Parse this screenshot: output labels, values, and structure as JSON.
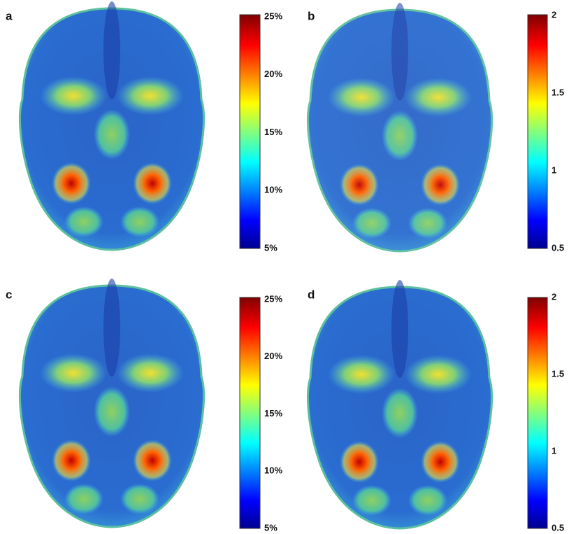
{
  "panels": [
    {
      "label": "a",
      "colorbar": {
        "ticks": [
          "25%",
          "20%",
          "15%",
          "10%",
          "5%"
        ]
      }
    },
    {
      "label": "b",
      "colorbar": {
        "ticks": [
          "2",
          "1.5",
          "1",
          "0.5"
        ]
      }
    },
    {
      "label": "c",
      "colorbar": {
        "ticks": [
          "25%",
          "20%",
          "15%",
          "10%",
          "5%"
        ]
      }
    },
    {
      "label": "d",
      "colorbar": {
        "ticks": [
          "2",
          "1.5",
          "1",
          "0.5"
        ]
      }
    }
  ]
}
